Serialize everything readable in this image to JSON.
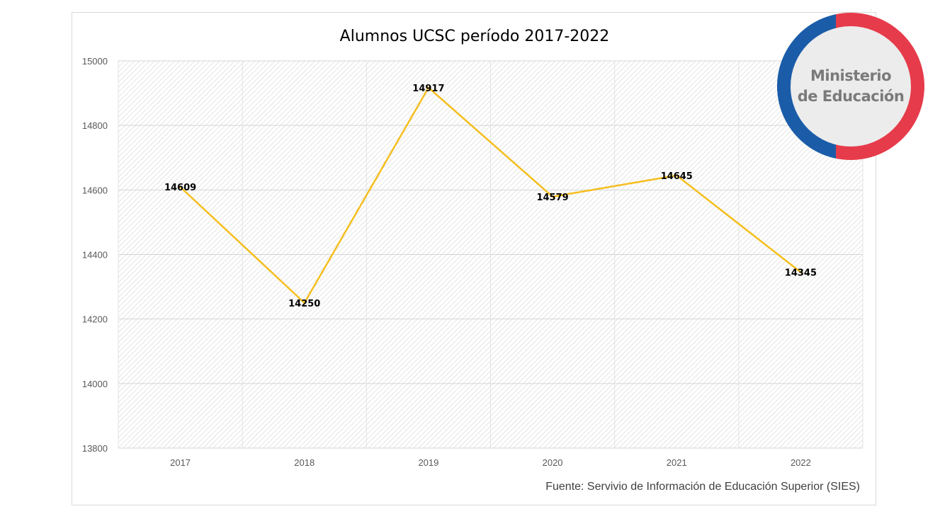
{
  "chart_data": {
    "type": "line",
    "title": "Alumnos UCSC período 2017-2022",
    "categories": [
      "2017",
      "2018",
      "2019",
      "2020",
      "2021",
      "2022"
    ],
    "series": [
      {
        "values": [
          14609,
          14250,
          14917,
          14579,
          14645,
          14345
        ]
      }
    ],
    "data_labels": [
      "14609",
      "14250",
      "14917",
      "14579",
      "14645",
      "14345"
    ],
    "y_ticks": [
      "13800",
      "14000",
      "14200",
      "14400",
      "14600",
      "14800",
      "15000"
    ],
    "ylim": [
      13800,
      15000
    ],
    "xlabel": "",
    "ylabel": "",
    "grid": true,
    "legend": "none",
    "line_color": "#F5BE1E",
    "plot_background": "hatched light gray"
  },
  "source_note": "Fuente: Servivio de Información de Educación Superior (SIES)",
  "badge": {
    "line1": "Ministerio",
    "line2": "de Educación",
    "ring_colors": {
      "left": "#1A5CA8",
      "right": "#E63B4A"
    }
  }
}
